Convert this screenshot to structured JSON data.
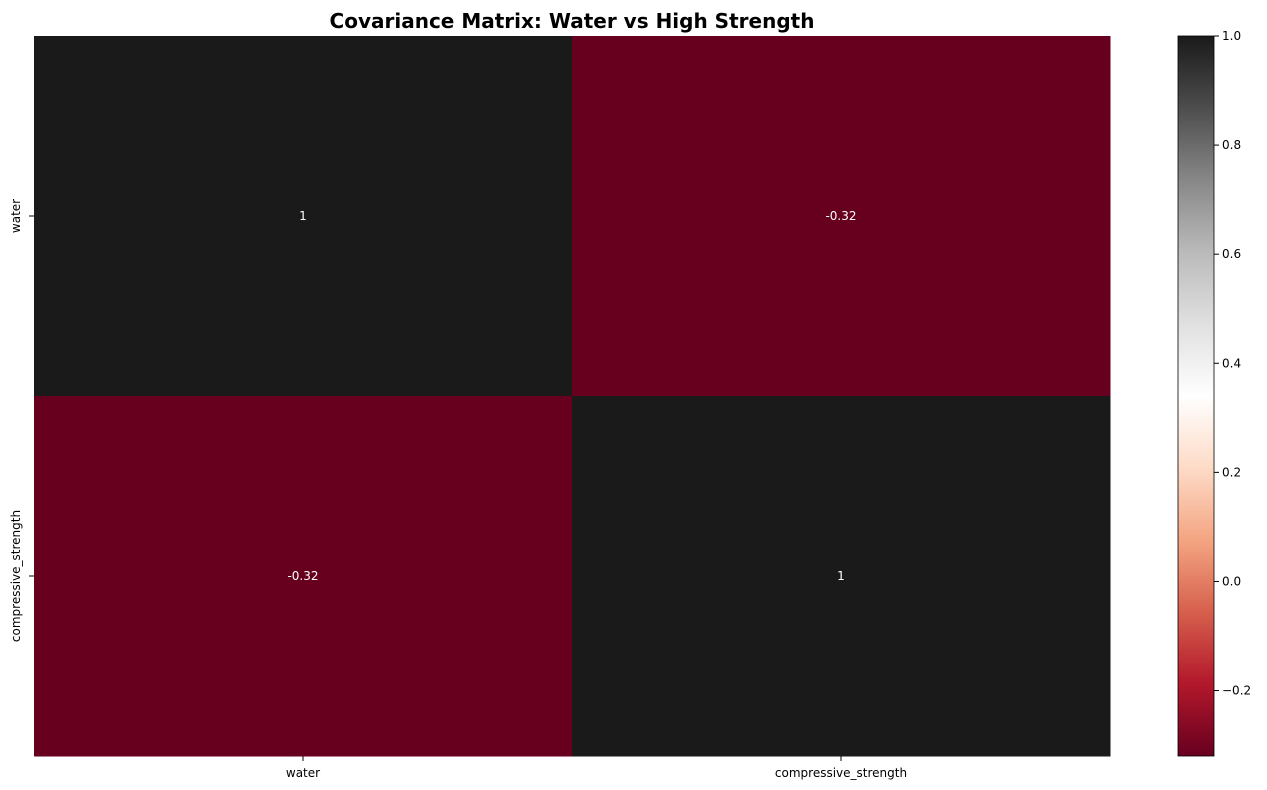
{
  "chart_data": {
    "type": "heatmap",
    "title": "Covariance Matrix: Water vs High Strength",
    "xlabel": "",
    "ylabel": "",
    "x_categories": [
      "water",
      "compressive_strength"
    ],
    "y_categories": [
      "water",
      "compressive_strength"
    ],
    "values": [
      [
        1,
        -0.32
      ],
      [
        -0.32,
        1
      ]
    ],
    "cell_labels": [
      [
        "1",
        "-0.32"
      ],
      [
        "-0.32",
        "1"
      ]
    ],
    "colorbar": {
      "range": [
        -0.32,
        1.0
      ],
      "ticks": [
        -0.2,
        0.0,
        0.2,
        0.4,
        0.6,
        0.8,
        1.0
      ],
      "tick_labels": [
        "−0.2",
        "0.0",
        "0.2",
        "0.4",
        "0.6",
        "0.8",
        "1.0"
      ],
      "colormap": "RdGy (reversed)",
      "color_stops": [
        "#67001f",
        "#b2182b",
        "#d6604d",
        "#f4a582",
        "#fddbc7",
        "#ffffff",
        "#e0e0e0",
        "#bababa",
        "#878787",
        "#4d4d4d",
        "#1a1a1a"
      ]
    },
    "grid": false,
    "legend": "colorbar-right"
  }
}
